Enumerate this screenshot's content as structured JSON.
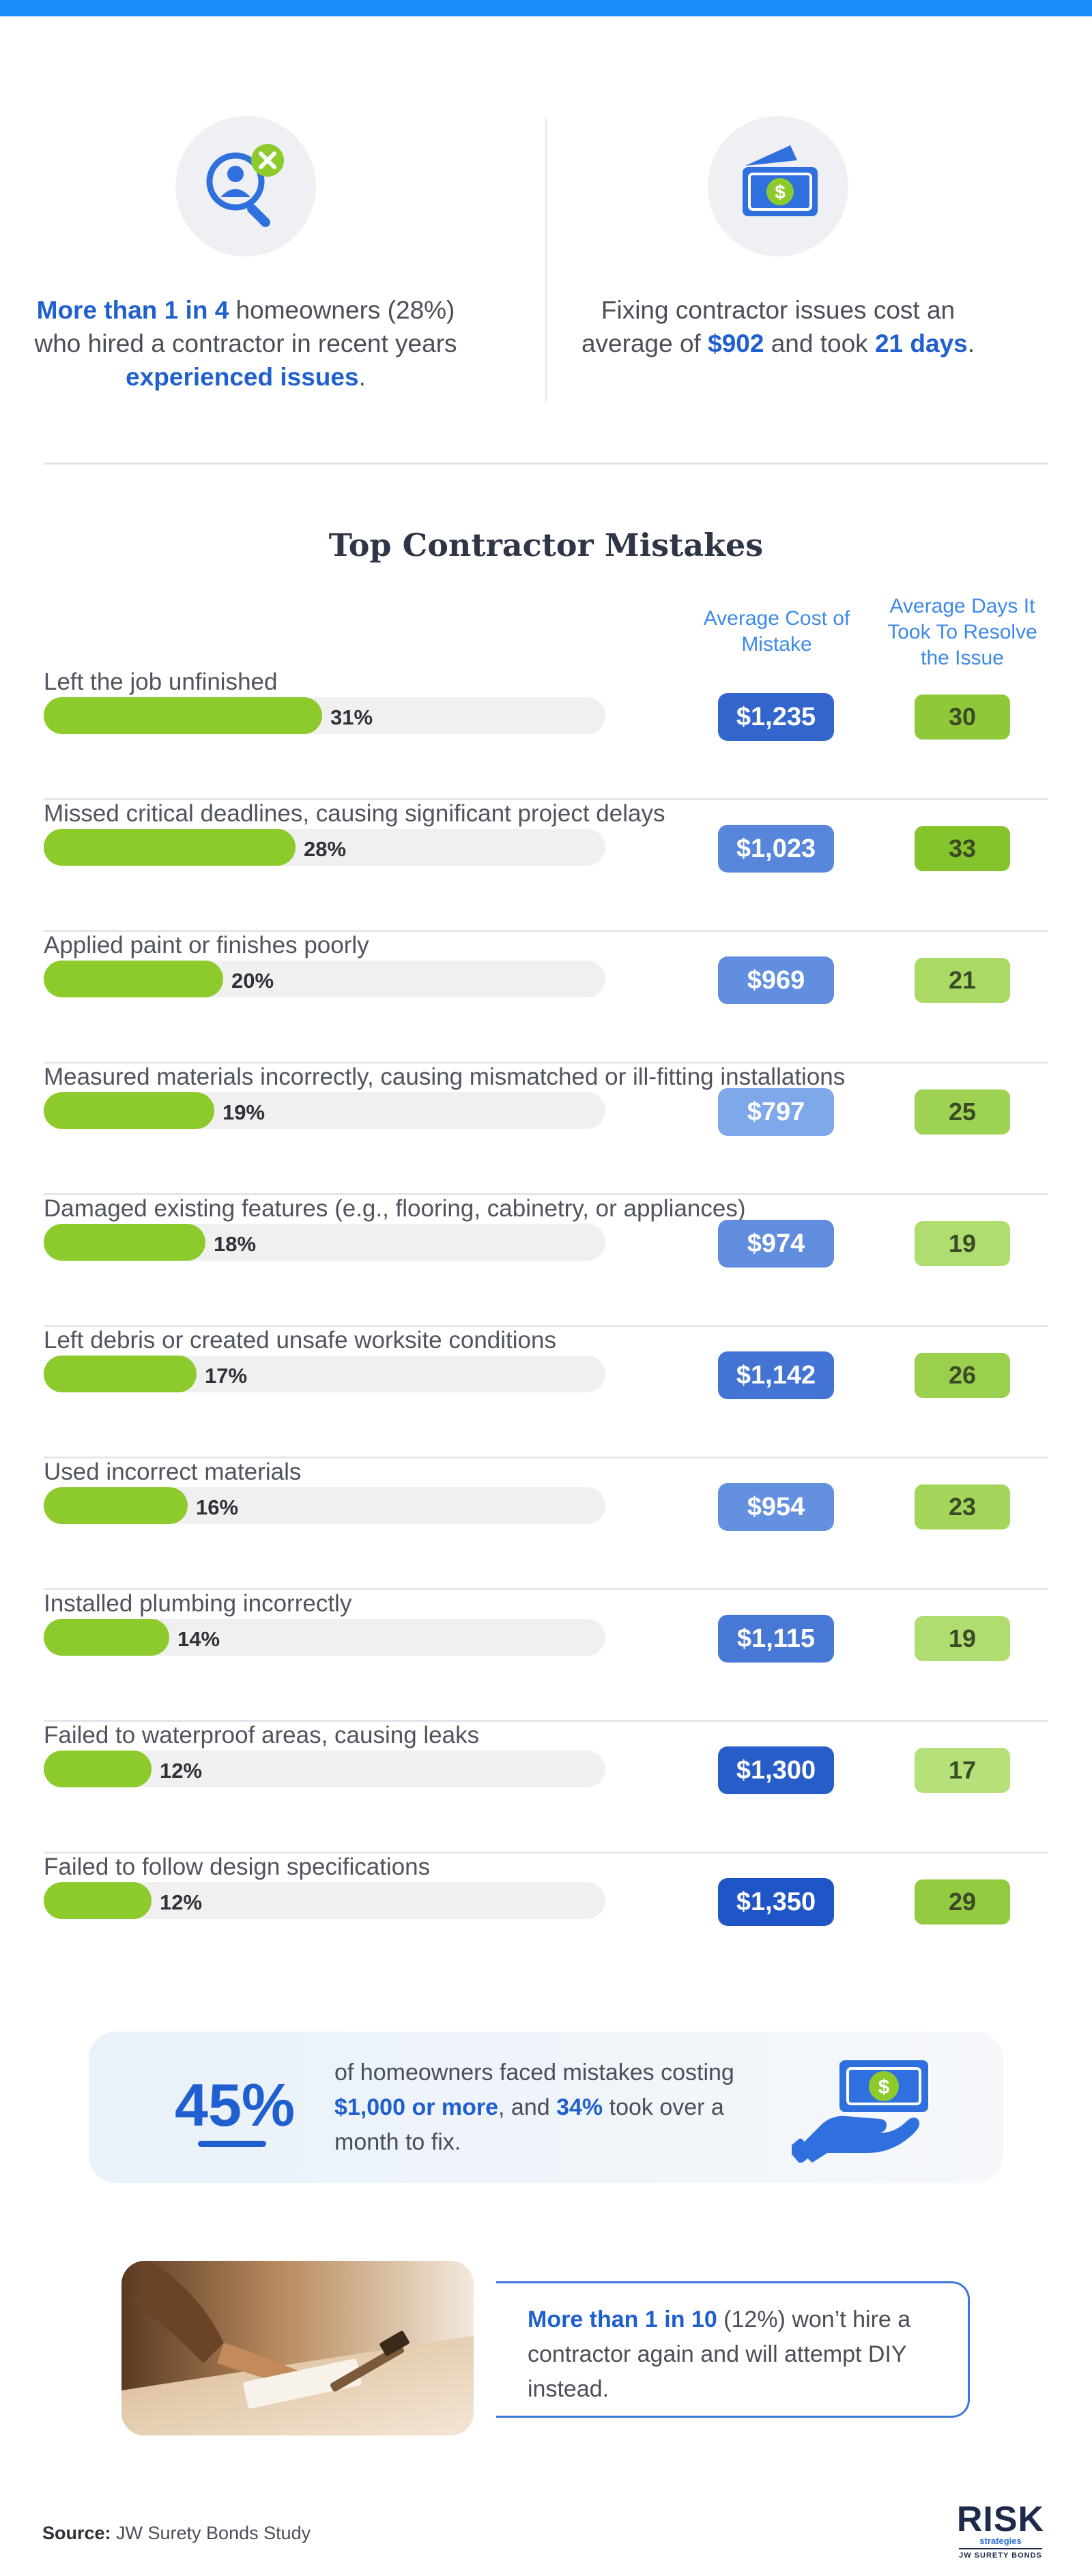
{
  "stats": {
    "left": {
      "hl1": "More than 1 in 4",
      "text1": " homeowners (28%) who hired a contractor in recent years ",
      "hl2": "experienced issues",
      "text2": "."
    },
    "right": {
      "text1": "Fixing contractor issues cost an average of ",
      "hl1": "$902",
      "text2": " and took ",
      "hl2": "21 days",
      "text3": "."
    }
  },
  "section_title": "Top Contractor Mistakes",
  "columns": {
    "cost_header": "Average Cost of Mistake",
    "days_header": "Average Days It Took To Resolve the Issue"
  },
  "chart_data": {
    "type": "bar",
    "title": "Top Contractor Mistakes",
    "categories": [
      "Left the job unfinished",
      "Missed critical deadlines, causing significant project delays",
      "Applied paint or finishes poorly",
      "Measured materials incorrectly, causing mismatched or ill-fitting installations",
      "Damaged existing features (e.g., flooring, cabinetry, or appliances)",
      "Left debris or created unsafe worksite conditions",
      "Used incorrect materials",
      "Installed plumbing incorrectly",
      "Failed to waterproof areas, causing leaks",
      "Failed to follow design specifications"
    ],
    "values": [
      31,
      28,
      20,
      19,
      18,
      17,
      16,
      14,
      12,
      12
    ],
    "value_labels": [
      "31%",
      "28%",
      "20%",
      "19%",
      "18%",
      "17%",
      "16%",
      "14%",
      "12%",
      "12%"
    ],
    "xlim": [
      0,
      100
    ],
    "cost_values": [
      1235,
      1023,
      969,
      797,
      974,
      1142,
      954,
      1115,
      1300,
      1350
    ],
    "cost_labels": [
      "$1,235",
      "$1,023",
      "$969",
      "$797",
      "$974",
      "$1,142",
      "$954",
      "$1,115",
      "$1,300",
      "$1,350"
    ],
    "days_values": [
      30,
      33,
      21,
      25,
      19,
      26,
      23,
      19,
      17,
      29
    ],
    "days_labels": [
      "30",
      "33",
      "21",
      "25",
      "19",
      "26",
      "23",
      "19",
      "17",
      "29"
    ]
  },
  "colors": {
    "accent_blue": "#1f5fcf",
    "bar_green": "#8dca2c",
    "top_bar": "#1a8cf7"
  },
  "callout": {
    "big_pct": "45%",
    "text1": "of homeowners faced mistakes costing ",
    "hl1": "$1,000 or more",
    "text2": ", and ",
    "hl2": "34%",
    "text3": " took over a month to fix."
  },
  "diy": {
    "hl1": "More than 1 in 10",
    "text1": " (12%) won’t hire a contractor again and will attempt DIY instead."
  },
  "source": {
    "label": "Source:",
    "text": " JW Surety Bonds Study"
  },
  "logo": {
    "main": "RISK",
    "sub": "strategies",
    "foot": "JW SURETY BONDS"
  },
  "icons": [
    "search-user-x-icon",
    "money-icon",
    "hand-money-icon"
  ]
}
